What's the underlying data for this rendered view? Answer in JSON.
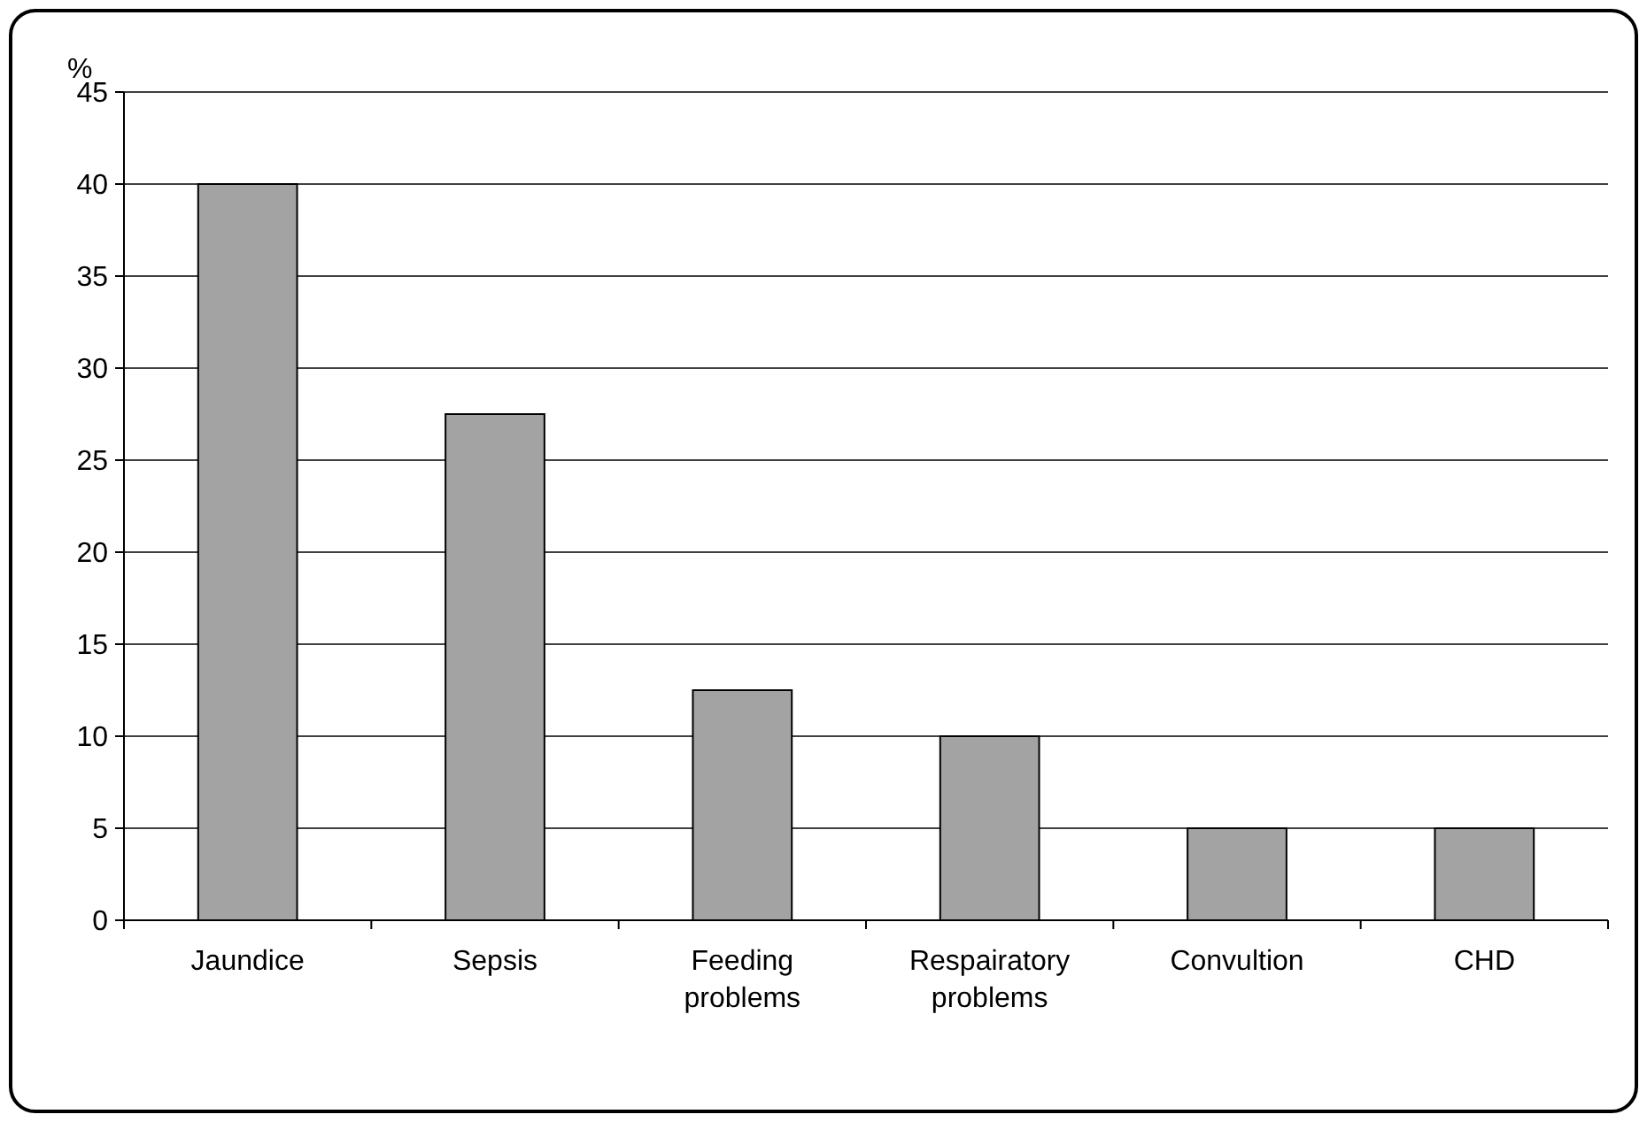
{
  "chart_data": {
    "type": "bar",
    "ylabel": "%",
    "categories": [
      "Jaundice",
      "Sepsis",
      "Feeding problems",
      "Respairatory problems",
      "Convultion",
      "CHD"
    ],
    "values": [
      40,
      27.5,
      12.5,
      10,
      5,
      5
    ],
    "color": "#a3a3a3",
    "ylim": [
      0,
      45
    ],
    "yticks": [
      0,
      5,
      10,
      15,
      20,
      25,
      30,
      35,
      40,
      45
    ],
    "grid": "y"
  }
}
